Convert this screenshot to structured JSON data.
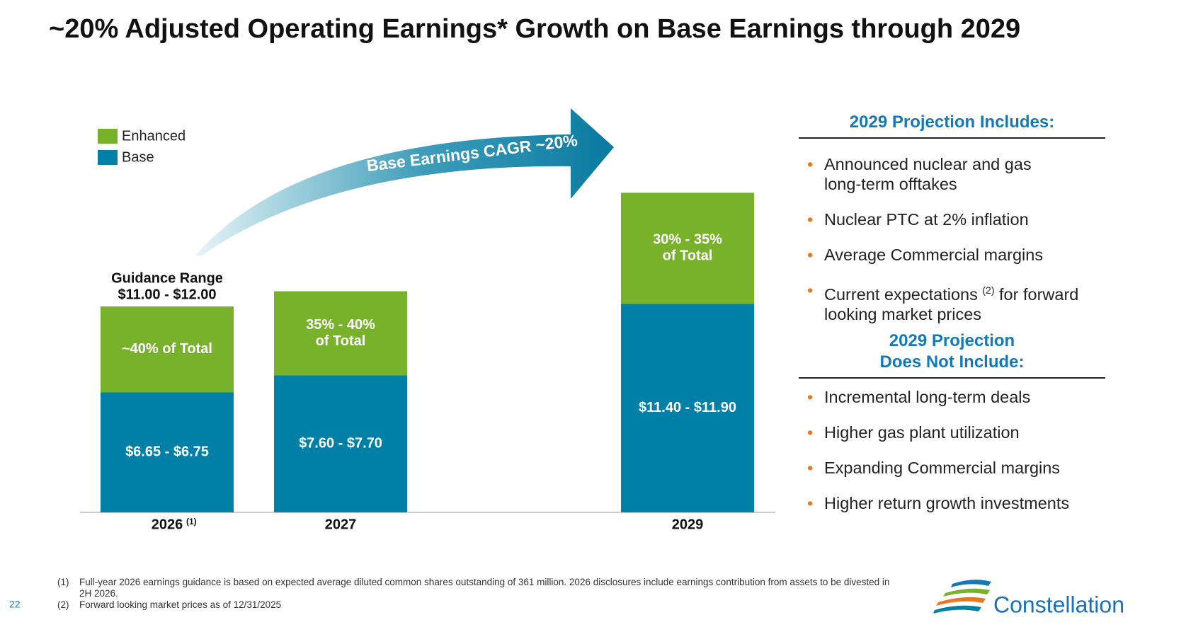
{
  "title": "~20% Adjusted Operating Earnings* Growth on Base Earnings through 2029",
  "chart_data": {
    "type": "bar",
    "stacked": true,
    "categories": [
      "2026",
      "2027",
      "2029"
    ],
    "category_notes": [
      "(1)",
      null,
      null
    ],
    "series": [
      {
        "name": "Base",
        "color": "#0080a7",
        "values": [
          6.7,
          7.65,
          11.65
        ],
        "labels": [
          [
            "$6.65 - $6.75"
          ],
          [
            "$7.60 - $7.70"
          ],
          [
            "$11.40 - $11.90"
          ]
        ]
      },
      {
        "name": "Enhanced",
        "color": "#78b22b",
        "values": [
          4.8,
          4.7,
          6.2
        ],
        "labels": [
          [
            "~40% of Total"
          ],
          [
            "35% - 40%",
            "of Total"
          ],
          [
            "30% - 35%",
            "of Total"
          ]
        ]
      }
    ],
    "guidance_annotation": [
      "Guidance Range",
      "$11.00 - $12.00"
    ],
    "arrow_label": "Base Earnings CAGR ~20%"
  },
  "includes": {
    "heading": [
      "2029 Projection Includes:"
    ],
    "items": [
      [
        "Announced nuclear and gas",
        "long-term offtakes"
      ],
      [
        "Nuclear PTC at 2% inflation"
      ],
      [
        "Average Commercial margins"
      ],
      [
        "Current expectations",
        "(2)",
        "for forward",
        "looking market prices"
      ]
    ]
  },
  "excludes": {
    "heading": [
      "2029 Projection",
      "Does Not Include:"
    ],
    "items": [
      [
        "Incremental long-term deals"
      ],
      [
        "Higher gas plant utilization"
      ],
      [
        "Expanding Commercial margins"
      ],
      [
        "Higher return growth investments"
      ]
    ]
  },
  "footnotes": [
    {
      "marker": "(1)",
      "text": "Full-year 2026 earnings guidance is based on expected average diluted common shares outstanding of 361 million.  2026 disclosures include earnings contribution from assets to be divested in 2H 2026."
    },
    {
      "marker": "(2)",
      "text": "Forward looking market prices as of 12/31/2025"
    }
  ],
  "page_number": "22",
  "logo": "Constellation"
}
